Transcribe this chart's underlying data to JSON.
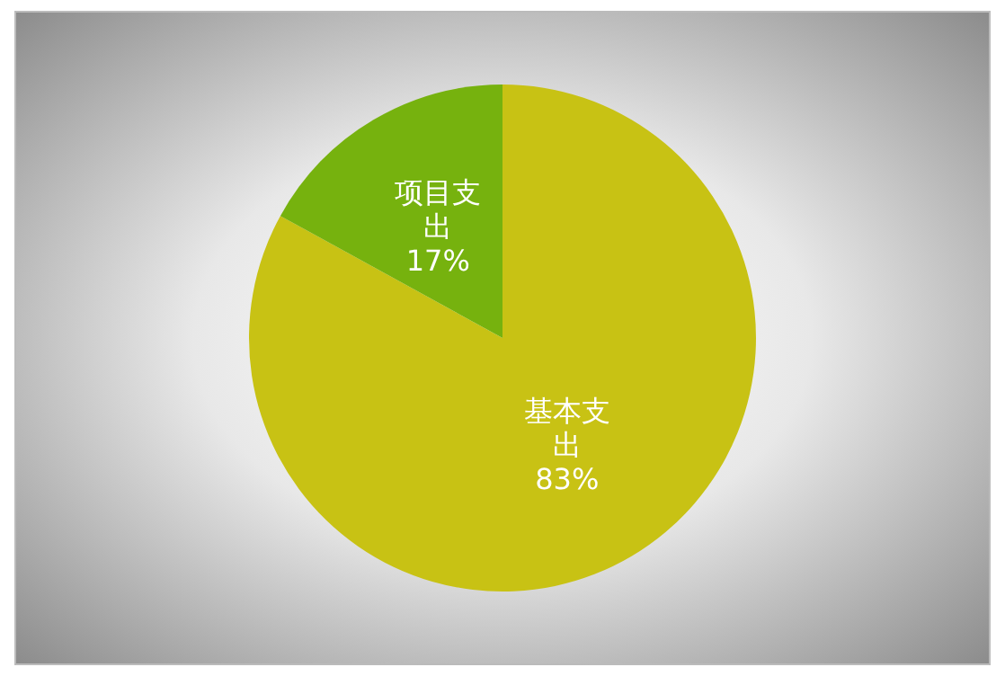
{
  "chart_data": {
    "type": "pie",
    "categories": [
      "基本支出",
      "项目支出"
    ],
    "values": [
      83,
      17
    ],
    "colors": [
      "#c8c214",
      "#76b20e"
    ],
    "value_labels": [
      "83%",
      "17%"
    ],
    "legend": false
  }
}
